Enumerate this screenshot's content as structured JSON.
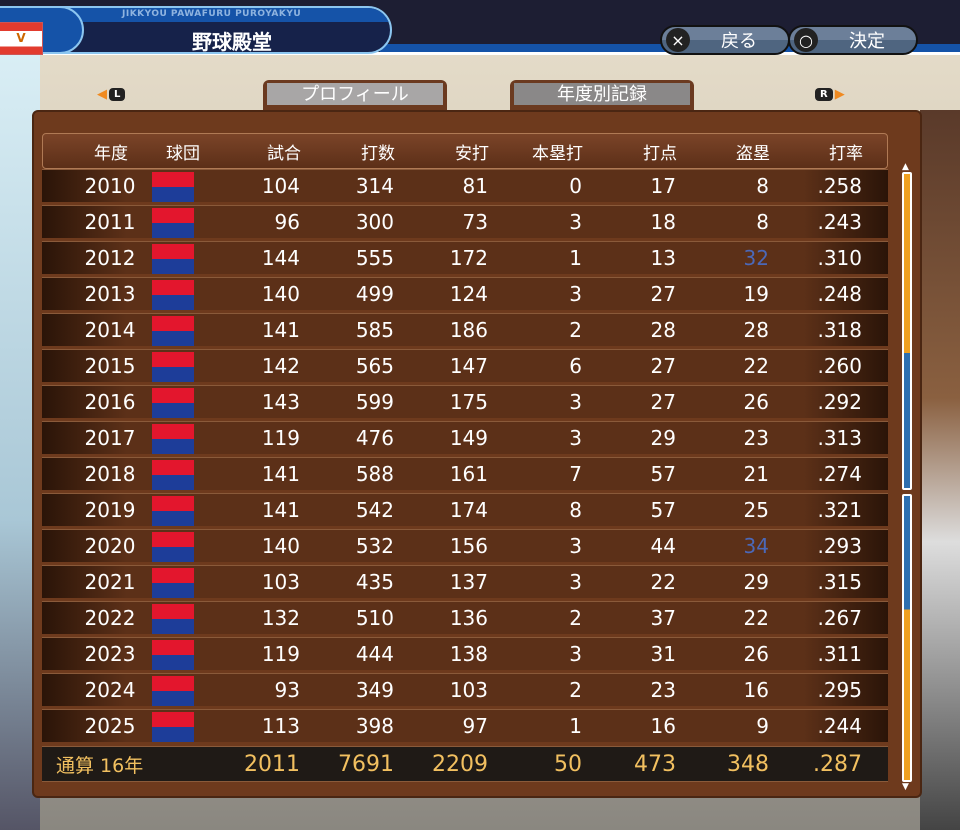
{
  "header": {
    "subtitle": "JIKKYOU PAWAFURU PUROYAKYU",
    "title": "野球殿堂",
    "flag_letter": "V",
    "back_label": "戻る",
    "back_icon": "×",
    "confirm_label": "決定",
    "confirm_icon": "○"
  },
  "nav": {
    "left_key": "L",
    "right_key": "R"
  },
  "tabs": [
    {
      "label": "プロフィール",
      "active": false
    },
    {
      "label": "年度別記録",
      "active": true
    }
  ],
  "table": {
    "columns": [
      "年度",
      "球団",
      "試合",
      "打数",
      "安打",
      "本塁打",
      "打点",
      "盗塁",
      "打率"
    ],
    "team_logo": "dragons-logo",
    "rows": [
      [
        "2010",
        "104",
        "314",
        "81",
        "0",
        "17",
        "8",
        ".258"
      ],
      [
        "2011",
        "96",
        "300",
        "73",
        "3",
        "18",
        "8",
        ".243"
      ],
      [
        "2012",
        "144",
        "555",
        "172",
        "1",
        "13",
        "32",
        ".310"
      ],
      [
        "2013",
        "140",
        "499",
        "124",
        "3",
        "27",
        "19",
        ".248"
      ],
      [
        "2014",
        "141",
        "585",
        "186",
        "2",
        "28",
        "28",
        ".318"
      ],
      [
        "2015",
        "142",
        "565",
        "147",
        "6",
        "27",
        "22",
        ".260"
      ],
      [
        "2016",
        "143",
        "599",
        "175",
        "3",
        "27",
        "26",
        ".292"
      ],
      [
        "2017",
        "119",
        "476",
        "149",
        "3",
        "29",
        "23",
        ".313"
      ],
      [
        "2018",
        "141",
        "588",
        "161",
        "7",
        "57",
        "21",
        ".274"
      ],
      [
        "2019",
        "141",
        "542",
        "174",
        "8",
        "57",
        "25",
        ".321"
      ],
      [
        "2020",
        "140",
        "532",
        "156",
        "3",
        "44",
        "34",
        ".293"
      ],
      [
        "2021",
        "103",
        "435",
        "137",
        "3",
        "22",
        "29",
        ".315"
      ],
      [
        "2022",
        "132",
        "510",
        "136",
        "2",
        "37",
        "22",
        ".267"
      ],
      [
        "2023",
        "119",
        "444",
        "138",
        "3",
        "31",
        "26",
        ".311"
      ],
      [
        "2024",
        "93",
        "349",
        "103",
        "2",
        "23",
        "16",
        ".295"
      ],
      [
        "2025",
        "113",
        "398",
        "97",
        "1",
        "16",
        "9",
        ".244"
      ]
    ],
    "highlighted": [
      [
        2,
        6
      ],
      [
        10,
        6
      ]
    ],
    "highlight_color": "#4b68b8",
    "total": {
      "label": "通算 16年",
      "values": [
        "2011",
        "7691",
        "2209",
        "50",
        "473",
        "348",
        ".287"
      ]
    }
  }
}
